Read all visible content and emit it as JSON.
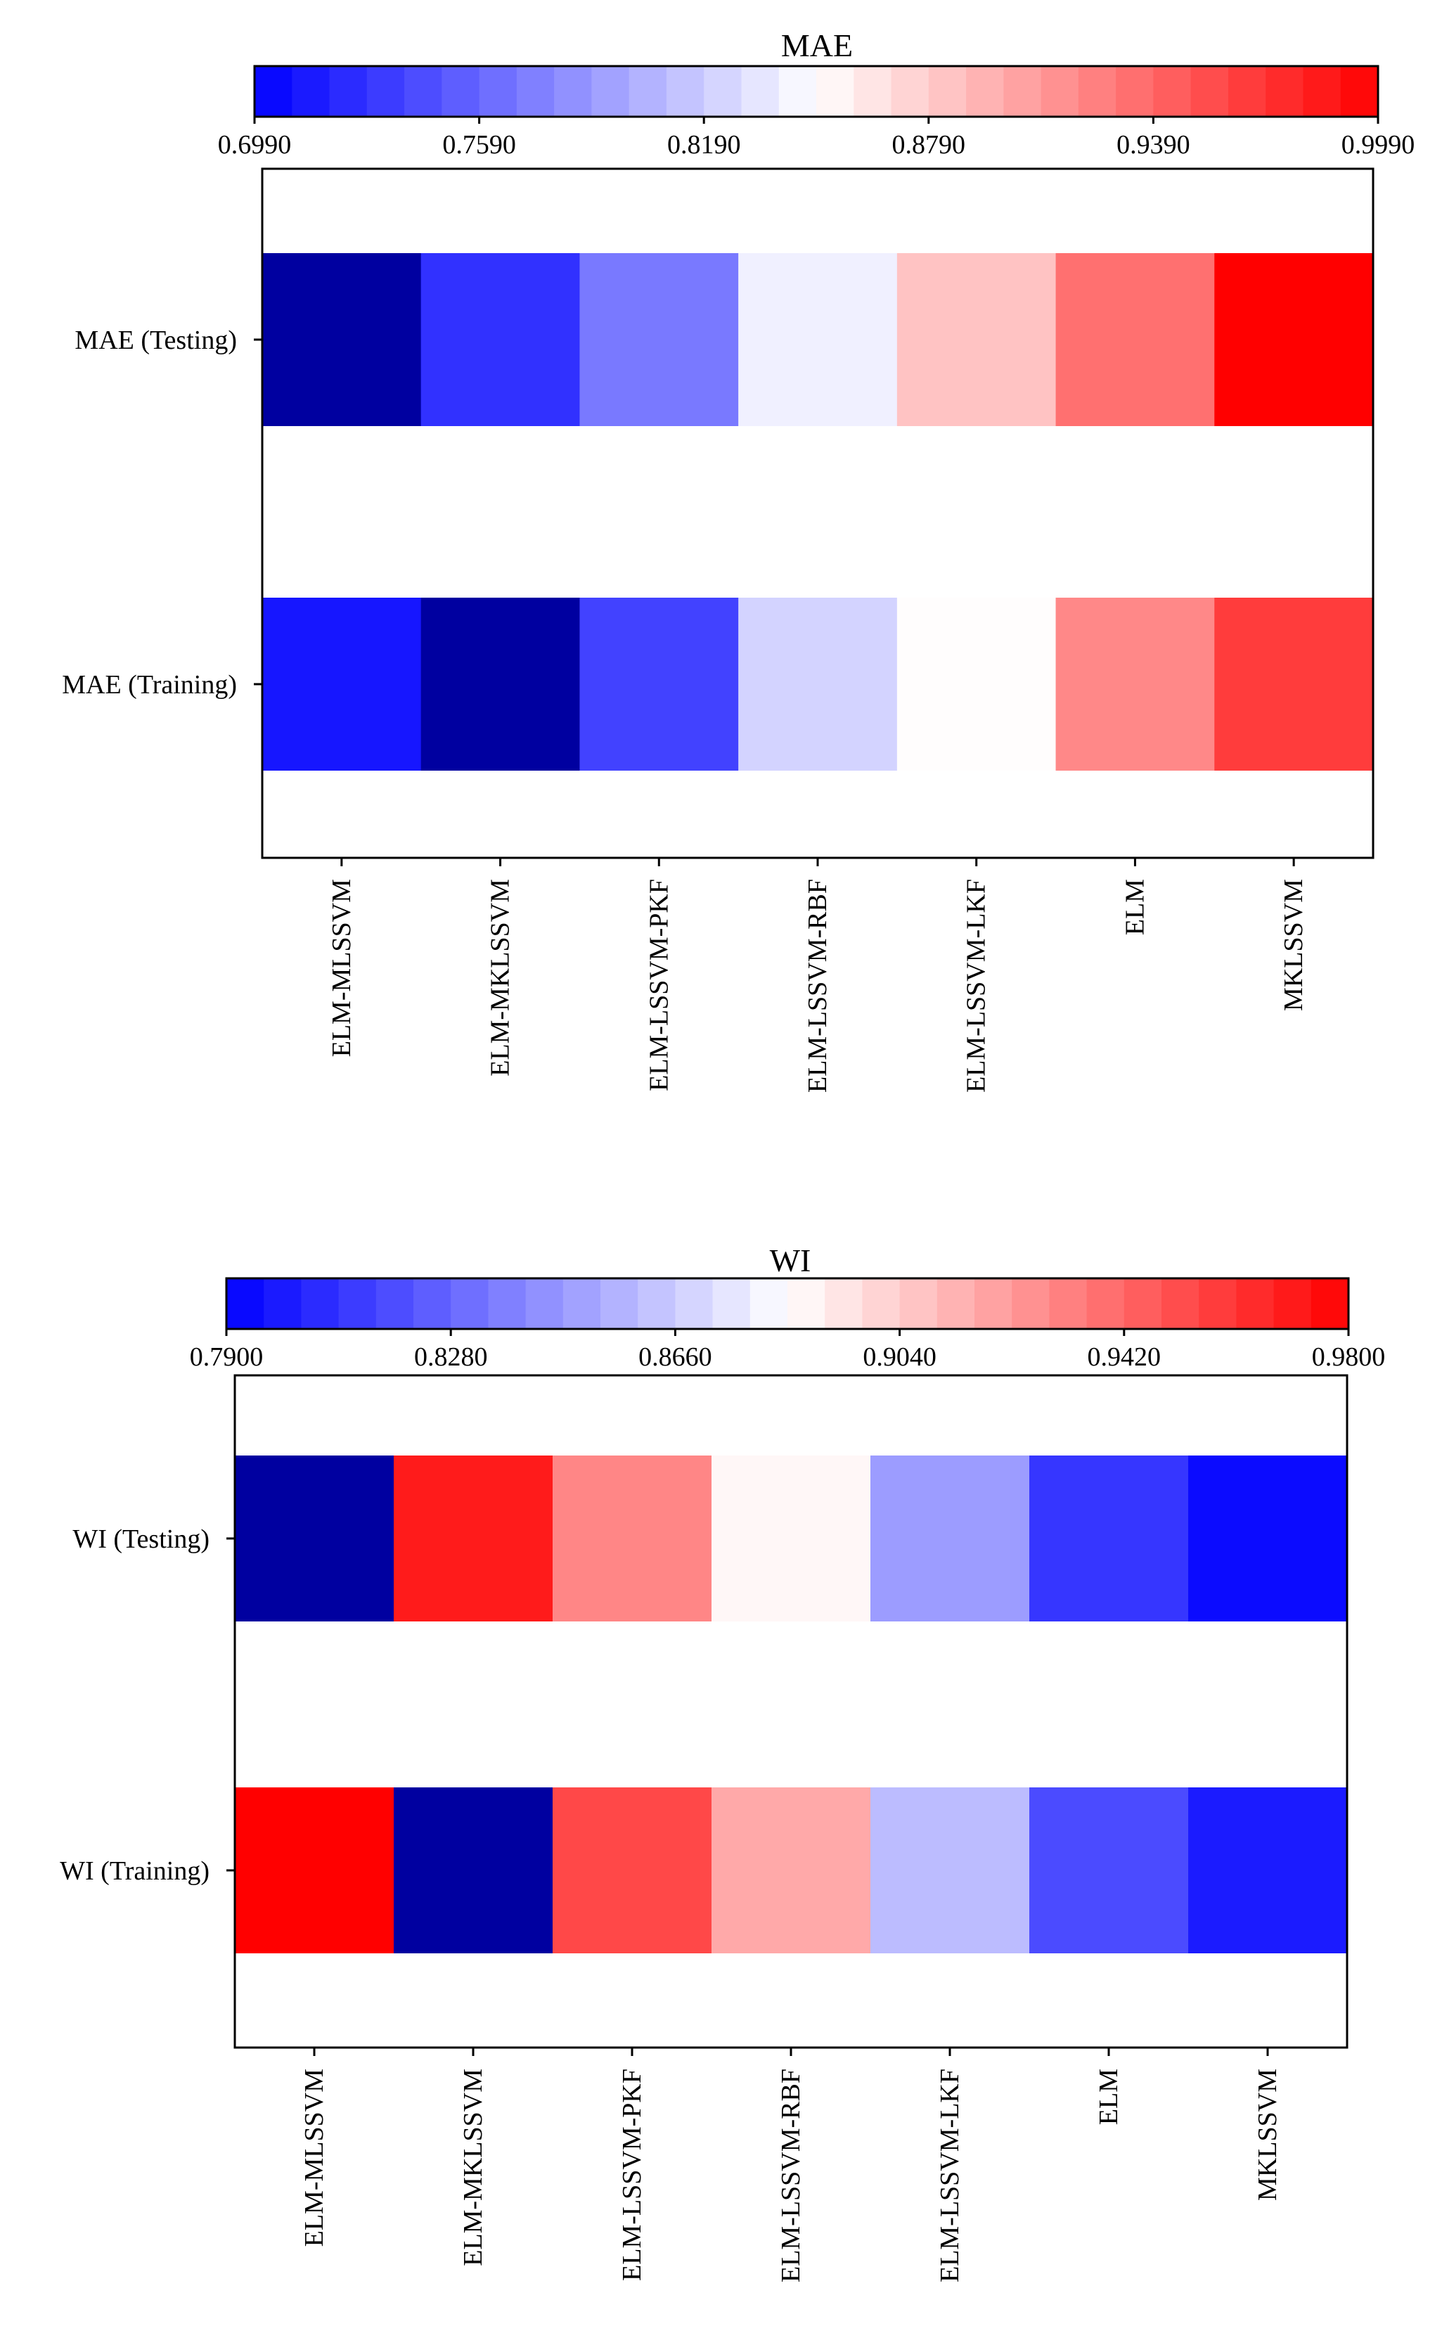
{
  "chart_data": [
    {
      "type": "heatmap",
      "title": "MAE",
      "rows": [
        "MAE (Testing)",
        "MAE (Training)"
      ],
      "columns": [
        "ELM-MLSSVM",
        "ELM-MKLSSVM",
        "ELM-LSSVM-PKF",
        "ELM-LSSVM-RBF",
        "ELM-LSSVM-LKF",
        "ELM",
        "MKLSSVM"
      ],
      "values": [
        [
          0.699,
          0.728,
          0.77,
          0.84,
          0.884,
          0.933,
          0.999
        ],
        [
          0.712,
          0.699,
          0.738,
          0.823,
          0.85,
          0.919,
          0.964
        ]
      ],
      "colorbar": {
        "min": 0.699,
        "max": 0.999,
        "ticks": [
          "0.6990",
          "0.7590",
          "0.8190",
          "0.8790",
          "0.9390",
          "0.9990"
        ],
        "tick_values": [
          0.699,
          0.759,
          0.819,
          0.879,
          0.939,
          0.999
        ],
        "position": "top"
      }
    },
    {
      "type": "heatmap",
      "title": "WI",
      "rows": [
        "WI (Testing)",
        "WI (Training)"
      ],
      "columns": [
        "ELM-MLSSVM",
        "ELM-MKLSSVM",
        "ELM-LSSVM-PKF",
        "ELM-LSSVM-RBF",
        "ELM-LSSVM-LKF",
        "ELM",
        "MKLSSVM"
      ],
      "values": [
        [
          0.79,
          0.97,
          0.93,
          0.888,
          0.848,
          0.81,
          0.794
        ],
        [
          0.98,
          0.79,
          0.953,
          0.917,
          0.86,
          0.818,
          0.8
        ]
      ],
      "colorbar": {
        "min": 0.79,
        "max": 0.98,
        "ticks": [
          "0.7900",
          "0.8280",
          "0.8660",
          "0.9040",
          "0.9420",
          "0.9800"
        ],
        "tick_values": [
          0.79,
          0.828,
          0.866,
          0.904,
          0.942,
          0.98
        ],
        "position": "top"
      }
    }
  ],
  "colors": {
    "low_clip": "#0000a0",
    "low": "#0000ff",
    "mid": "#ffffff",
    "high": "#ff0000"
  }
}
